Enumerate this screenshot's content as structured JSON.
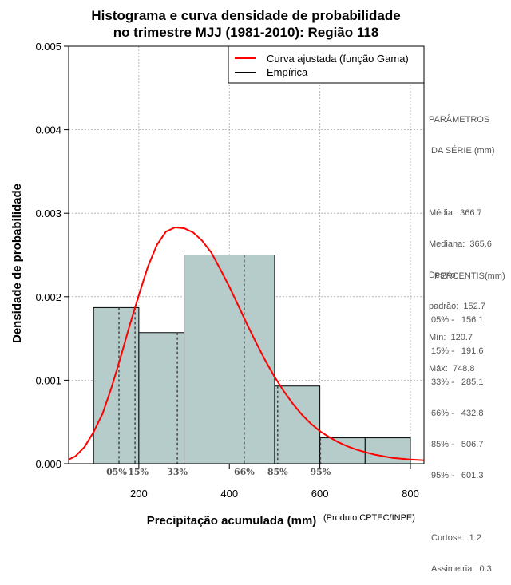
{
  "chart_data": {
    "type": "histogram",
    "title": "Histograma e curva densidade de probabilidade",
    "subtitle": "no trimestre MJJ (1981-2010): Região 118",
    "xlabel": "Precipitação acumulada (mm)",
    "ylabel": "Densidade de probabilidade",
    "credit": "(Produto:CPTEC/INPE)",
    "xlim": [
      45,
      830
    ],
    "ylim": [
      0,
      0.005
    ],
    "xticks": [
      200,
      400,
      600,
      800
    ],
    "yticks": [
      0.0,
      0.001,
      0.002,
      0.003,
      0.004,
      0.005
    ],
    "ytick_labels": [
      "0.000",
      "0.001",
      "0.002",
      "0.003",
      "0.004",
      "0.005"
    ],
    "grid": true,
    "legend_position": "top-right",
    "bins": [
      {
        "from": 100,
        "to": 200,
        "density": 0.00187
      },
      {
        "from": 200,
        "to": 300,
        "density": 0.00157
      },
      {
        "from": 300,
        "to": 500,
        "density": 0.0025
      },
      {
        "from": 500,
        "to": 600,
        "density": 0.00093
      },
      {
        "from": 600,
        "to": 700,
        "density": 0.00031
      },
      {
        "from": 700,
        "to": 800,
        "density": 0.00031
      }
    ],
    "fitted_curve": {
      "name": "Curva ajustada (função Gama)",
      "color": "#ff0000",
      "x": [
        45,
        60,
        80,
        100,
        120,
        140,
        160,
        180,
        200,
        220,
        240,
        260,
        280,
        300,
        320,
        340,
        360,
        380,
        400,
        420,
        440,
        460,
        480,
        500,
        520,
        540,
        560,
        580,
        600,
        620,
        640,
        660,
        680,
        700,
        720,
        740,
        760,
        780,
        800,
        830
      ],
      "y": [
        5e-05,
        9e-05,
        0.0002,
        0.00038,
        0.0006,
        0.00092,
        0.00128,
        0.00166,
        0.00202,
        0.00236,
        0.00262,
        0.00278,
        0.00283,
        0.00282,
        0.00277,
        0.00267,
        0.00253,
        0.00233,
        0.00212,
        0.00189,
        0.00166,
        0.00144,
        0.00123,
        0.00104,
        0.00087,
        0.00072,
        0.00059,
        0.00048,
        0.00039,
        0.00032,
        0.00026,
        0.00021,
        0.00017,
        0.00014,
        0.00011,
        9e-05,
        7e-05,
        6e-05,
        5e-05,
        4e-05
      ]
    },
    "empirical": {
      "name": "Empírica",
      "color": "#000000"
    },
    "bar_color": "#b5cccb",
    "percentile_markers": [
      {
        "label": "05%",
        "x": 156.1
      },
      {
        "label": "15%",
        "x": 191.6
      },
      {
        "label": "33%",
        "x": 285.1
      },
      {
        "label": "66%",
        "x": 432.8
      },
      {
        "label": "85%",
        "x": 506.7
      },
      {
        "label": "95%",
        "x": 601.3
      }
    ]
  },
  "side_panel": {
    "params_title_1": "PARÂMETROS",
    "params_title_2": " DA SÉRIE (mm)",
    "stats": [
      "Média:  366.7",
      "Mediana:  365.6",
      "Desvio",
      "padrão:  152.7",
      "Mín:  120.7",
      "Máx:  748.8"
    ],
    "percentis_title": "PERCENTIS(mm)",
    "percentis": [
      "05% -   156.1",
      "15% -   191.6",
      "33% -   285.1",
      "66% -   432.8",
      "85% -   506.7",
      "95% -   601.3"
    ],
    "shape": [
      "Curtose:  1.2",
      "Assimetria:  0.3"
    ]
  }
}
